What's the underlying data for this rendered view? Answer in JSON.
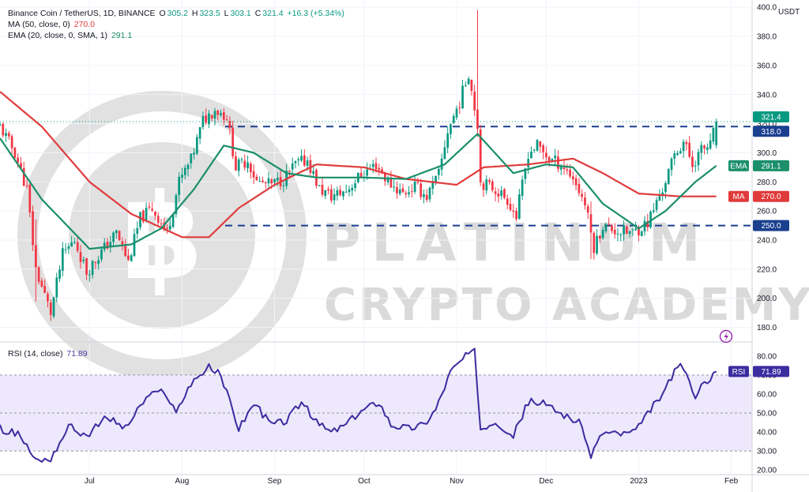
{
  "legend": {
    "symbol": "Binance Coin / TetherUS, 1D, BINANCE",
    "o_label": "O",
    "o": "305.2",
    "h_label": "H",
    "h": "323.5",
    "l_label": "L",
    "l": "303.1",
    "c_label": "C",
    "c": "321.4",
    "change": "+16.3 (+5.34%)",
    "ma_label": "MA (50, close, 0)",
    "ma_value": "270.0",
    "ema_label": "EMA (20, close, 0, SMA, 1)",
    "ema_value": "291.1",
    "rsi_label": "RSI (14, close)",
    "rsi_value": "71.89"
  },
  "watermark": {
    "line1": "PLATINUM",
    "line2": "CRYPTO ACADEMY",
    "logo_icon": "bitcoin-b-icon"
  },
  "currency": "USDT",
  "badges": {
    "price": "321.4",
    "resistance": "318.0",
    "ema_tag": "EMA",
    "ema": "291.1",
    "ma_tag": "MA",
    "ma": "270.0",
    "support": "250.0",
    "rsi_tag": "RSI",
    "rsi": "71.89"
  },
  "colors": {
    "up": "#089981",
    "down": "#f23645",
    "ma": "#e03b3b",
    "ema": "#1b8f6a",
    "rsi": "#3b2ca0",
    "rsi_band": "#ede8fb",
    "level_line": "#1a3f8f",
    "price_badge": "#089981"
  },
  "chart_data": [
    {
      "type": "candlestick",
      "title": "Binance Coin / TetherUS, 1D, BINANCE",
      "ylabel": "USDT",
      "ylim": [
        170,
        405
      ],
      "y_ticks": [
        180,
        200,
        220,
        240,
        260,
        280,
        300,
        320,
        340,
        360,
        380,
        400
      ],
      "y_tick_labels": [
        "180.0",
        "200.0",
        "220.0",
        "240.0",
        "260.0",
        "280.0",
        "300.0",
        "320.0",
        "340.0",
        "360.0",
        "380.0",
        "400.0"
      ],
      "x_ticks": [
        "Jul",
        "Aug",
        "Sep",
        "Oct",
        "Nov",
        "Dec",
        "2023",
        "Feb"
      ],
      "x_start": "2022-06-01",
      "x_end": "2023-02-08",
      "x_tick_dates": [
        "2022-07-01",
        "2022-08-01",
        "2022-09-01",
        "2022-10-01",
        "2022-11-01",
        "2022-12-01",
        "2023-01-01",
        "2023-02-01"
      ],
      "horizontal_levels": [
        318.0,
        250.0
      ],
      "close_anchors": [
        [
          "2022-06-01",
          318
        ],
        [
          "2022-06-06",
          300
        ],
        [
          "2022-06-10",
          275
        ],
        [
          "2022-06-13",
          220
        ],
        [
          "2022-06-18",
          190
        ],
        [
          "2022-06-22",
          230
        ],
        [
          "2022-06-26",
          240
        ],
        [
          "2022-06-30",
          218
        ],
        [
          "2022-07-05",
          232
        ],
        [
          "2022-07-10",
          245
        ],
        [
          "2022-07-14",
          225
        ],
        [
          "2022-07-18",
          255
        ],
        [
          "2022-07-22",
          262
        ],
        [
          "2022-07-27",
          245
        ],
        [
          "2022-07-31",
          280
        ],
        [
          "2022-08-04",
          295
        ],
        [
          "2022-08-08",
          322
        ],
        [
          "2022-08-12",
          330
        ],
        [
          "2022-08-16",
          325
        ],
        [
          "2022-08-19",
          290
        ],
        [
          "2022-08-23",
          295
        ],
        [
          "2022-08-26",
          280
        ],
        [
          "2022-08-31",
          278
        ],
        [
          "2022-09-04",
          282
        ],
        [
          "2022-09-08",
          292
        ],
        [
          "2022-09-12",
          295
        ],
        [
          "2022-09-16",
          275
        ],
        [
          "2022-09-20",
          270
        ],
        [
          "2022-09-25",
          274
        ],
        [
          "2022-09-30",
          285
        ],
        [
          "2022-10-05",
          292
        ],
        [
          "2022-10-09",
          280
        ],
        [
          "2022-10-14",
          272
        ],
        [
          "2022-10-18",
          277
        ],
        [
          "2022-10-22",
          270
        ],
        [
          "2022-10-26",
          285
        ],
        [
          "2022-10-29",
          315
        ],
        [
          "2022-11-02",
          335
        ],
        [
          "2022-11-05",
          355
        ],
        [
          "2022-11-08",
          320
        ],
        [
          "2022-11-09",
          280
        ],
        [
          "2022-11-14",
          275
        ],
        [
          "2022-11-18",
          268
        ],
        [
          "2022-11-21",
          256
        ],
        [
          "2022-11-25",
          300
        ],
        [
          "2022-11-28",
          305
        ],
        [
          "2022-12-02",
          296
        ],
        [
          "2022-12-06",
          292
        ],
        [
          "2022-12-10",
          283
        ],
        [
          "2022-12-14",
          265
        ],
        [
          "2022-12-17",
          235
        ],
        [
          "2022-12-20",
          250
        ],
        [
          "2022-12-25",
          246
        ],
        [
          "2022-12-30",
          245
        ],
        [
          "2023-01-04",
          252
        ],
        [
          "2023-01-09",
          275
        ],
        [
          "2023-01-13",
          298
        ],
        [
          "2023-01-16",
          308
        ],
        [
          "2023-01-19",
          292
        ],
        [
          "2023-01-22",
          302
        ],
        [
          "2023-01-25",
          305
        ],
        [
          "2023-01-27",
          321.4
        ]
      ],
      "series": [
        {
          "name": "MA (50, close, 0)",
          "last": 270.0,
          "anchors": [
            [
              "2022-06-01",
              342
            ],
            [
              "2022-06-15",
              318
            ],
            [
              "2022-07-01",
              280
            ],
            [
              "2022-07-15",
              258
            ],
            [
              "2022-08-01",
              242
            ],
            [
              "2022-08-10",
              242
            ],
            [
              "2022-08-20",
              262
            ],
            [
              "2022-09-01",
              278
            ],
            [
              "2022-09-15",
              292
            ],
            [
              "2022-10-01",
              290
            ],
            [
              "2022-10-15",
              282
            ],
            [
              "2022-11-01",
              278
            ],
            [
              "2022-11-10",
              290
            ],
            [
              "2022-11-25",
              292
            ],
            [
              "2022-12-10",
              296
            ],
            [
              "2022-12-20",
              286
            ],
            [
              "2023-01-01",
              272
            ],
            [
              "2023-01-15",
              270
            ],
            [
              "2023-01-27",
              270
            ]
          ]
        },
        {
          "name": "EMA (20, close, 0, SMA, 1)",
          "last": 291.1,
          "anchors": [
            [
              "2022-06-01",
              310
            ],
            [
              "2022-06-15",
              268
            ],
            [
              "2022-07-01",
              234
            ],
            [
              "2022-07-15",
              237
            ],
            [
              "2022-07-25",
              248
            ],
            [
              "2022-08-05",
              275
            ],
            [
              "2022-08-15",
              305
            ],
            [
              "2022-08-25",
              300
            ],
            [
              "2022-09-05",
              286
            ],
            [
              "2022-09-15",
              283
            ],
            [
              "2022-10-01",
              283
            ],
            [
              "2022-10-15",
              282
            ],
            [
              "2022-10-28",
              292
            ],
            [
              "2022-11-08",
              313
            ],
            [
              "2022-11-20",
              286
            ],
            [
              "2022-12-01",
              292
            ],
            [
              "2022-12-10",
              290
            ],
            [
              "2022-12-20",
              265
            ],
            [
              "2023-01-01",
              248
            ],
            [
              "2023-01-10",
              260
            ],
            [
              "2023-01-20",
              280
            ],
            [
              "2023-01-27",
              291.1
            ]
          ]
        }
      ]
    },
    {
      "type": "line",
      "title": "RSI (14, close)",
      "ylim": [
        18,
        87
      ],
      "y_ticks": [
        20,
        30,
        40,
        50,
        60,
        70,
        80
      ],
      "y_tick_labels": [
        "20.00",
        "30.00",
        "40.00",
        "50.00",
        "60.00",
        "70.00",
        "80.00"
      ],
      "band": [
        30,
        70
      ],
      "series": [
        {
          "name": "RSI (14, close)",
          "last": 71.89,
          "anchors": [
            [
              "2022-06-01",
              42
            ],
            [
              "2022-06-08",
              38
            ],
            [
              "2022-06-13",
              25
            ],
            [
              "2022-06-18",
              26
            ],
            [
              "2022-06-24",
              43
            ],
            [
              "2022-06-30",
              38
            ],
            [
              "2022-07-07",
              48
            ],
            [
              "2022-07-13",
              42
            ],
            [
              "2022-07-20",
              58
            ],
            [
              "2022-07-26",
              62
            ],
            [
              "2022-07-30",
              50
            ],
            [
              "2022-08-04",
              66
            ],
            [
              "2022-08-10",
              74
            ],
            [
              "2022-08-14",
              70
            ],
            [
              "2022-08-20",
              42
            ],
            [
              "2022-08-25",
              55
            ],
            [
              "2022-08-31",
              44
            ],
            [
              "2022-09-05",
              46
            ],
            [
              "2022-09-10",
              56
            ],
            [
              "2022-09-15",
              45
            ],
            [
              "2022-09-20",
              40
            ],
            [
              "2022-09-25",
              44
            ],
            [
              "2022-10-01",
              52
            ],
            [
              "2022-10-06",
              56
            ],
            [
              "2022-10-10",
              44
            ],
            [
              "2022-10-16",
              42
            ],
            [
              "2022-10-21",
              44
            ],
            [
              "2022-10-25",
              52
            ],
            [
              "2022-10-30",
              72
            ],
            [
              "2022-11-04",
              80
            ],
            [
              "2022-11-07",
              82
            ],
            [
              "2022-11-09",
              42
            ],
            [
              "2022-11-14",
              46
            ],
            [
              "2022-11-20",
              38
            ],
            [
              "2022-11-25",
              56
            ],
            [
              "2022-11-30",
              55
            ],
            [
              "2022-12-06",
              50
            ],
            [
              "2022-12-12",
              45
            ],
            [
              "2022-12-16",
              28
            ],
            [
              "2022-12-20",
              40
            ],
            [
              "2022-12-26",
              39
            ],
            [
              "2022-12-31",
              40
            ],
            [
              "2023-01-05",
              52
            ],
            [
              "2023-01-10",
              62
            ],
            [
              "2023-01-14",
              76
            ],
            [
              "2023-01-17",
              70
            ],
            [
              "2023-01-20",
              58
            ],
            [
              "2023-01-23",
              66
            ],
            [
              "2023-01-27",
              71.89
            ]
          ]
        }
      ]
    }
  ]
}
